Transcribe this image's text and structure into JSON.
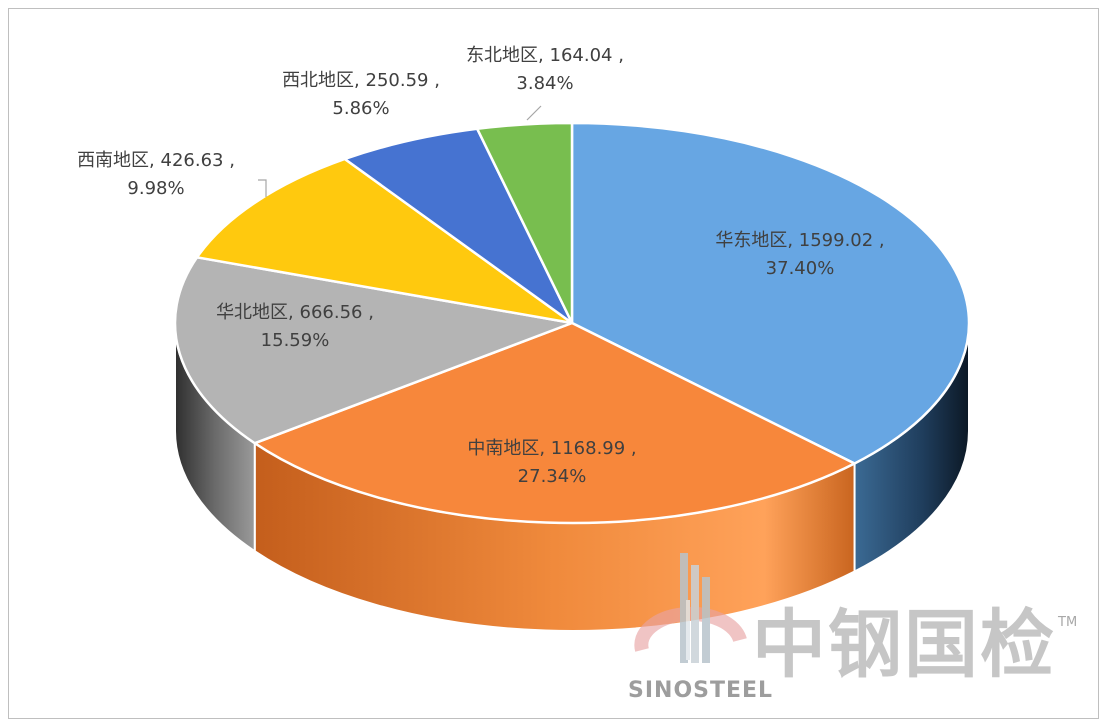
{
  "chart_data": {
    "type": "pie",
    "title": "",
    "slices": [
      {
        "label": "华东地区",
        "value": 1599.02,
        "percent": "37.40%",
        "color": "#67A6E3"
      },
      {
        "label": "中南地区",
        "value": 1168.99,
        "percent": "27.34%",
        "color": "#F7873B"
      },
      {
        "label": "华北地区",
        "value": 666.56,
        "percent": "15.59%",
        "color": "#B4B4B4"
      },
      {
        "label": "西南地区",
        "value": 426.63,
        "percent": "9.98%",
        "color": "#FFC90E"
      },
      {
        "label": "西北地区",
        "value": 250.59,
        "percent": "5.86%",
        "color": "#4673D1"
      },
      {
        "label": "东北地区",
        "value": 164.04,
        "percent": "3.84%",
        "color": "#78BE4F"
      }
    ]
  },
  "watermark": {
    "brand_cn": "中钢国检",
    "brand_en": "SINOSTEEL",
    "trademark": "TM"
  }
}
